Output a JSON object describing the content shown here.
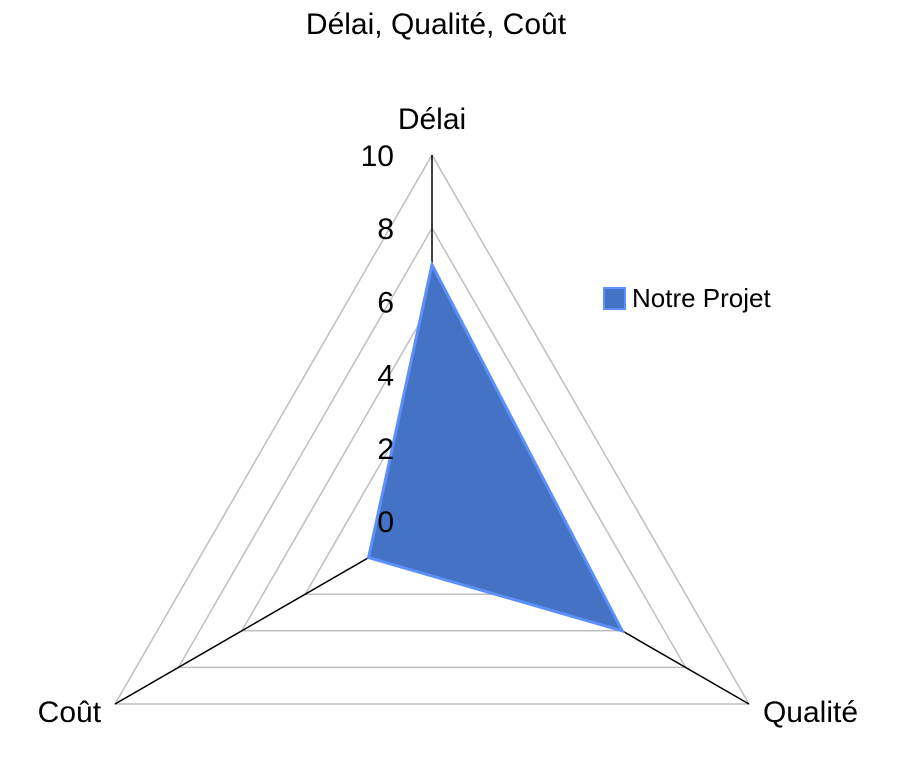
{
  "chart_data": {
    "type": "radar",
    "title": "Délai, Qualité, Coût",
    "axes": [
      "Délai",
      "Qualité",
      "Coût"
    ],
    "series": [
      {
        "name": "Notre Projet",
        "values": [
          7,
          6,
          2
        ]
      }
    ],
    "r_range": [
      0,
      10
    ],
    "ticks": [
      "0",
      "2",
      "4",
      "6",
      "8",
      "10"
    ],
    "grid": true,
    "legend_position": "right",
    "colors": {
      "series_fill": "#4472c4",
      "series_stroke": "#5b8ff9",
      "grid": "#bfbfbf",
      "spoke": "#000000"
    }
  }
}
